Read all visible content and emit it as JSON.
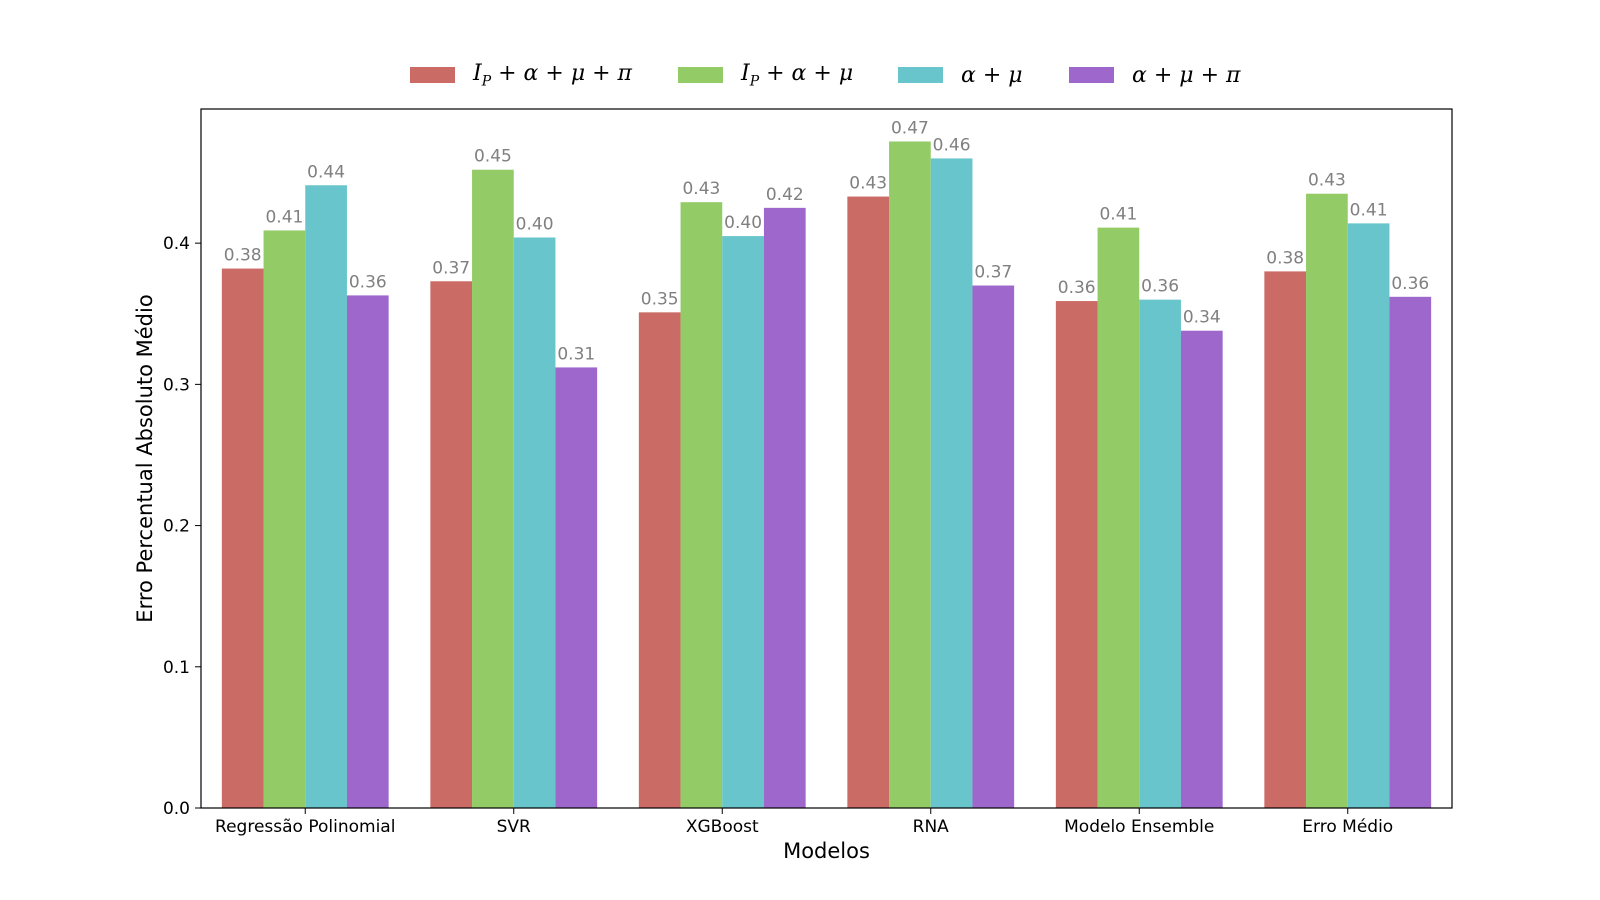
{
  "chart_data": {
    "type": "bar",
    "xlabel": "Modelos",
    "ylabel": "Erro Percentual Absoluto Médio",
    "ylim": [
      0,
      0.495
    ],
    "yticks": [
      "0.0",
      "0.1",
      "0.2",
      "0.3",
      "0.4"
    ],
    "grid": false,
    "legend_position": "top-center",
    "categories": [
      "Regressão Polinomial",
      "SVR",
      "XGBoost",
      "RNA",
      "Modelo Ensemble",
      "Erro Médio"
    ],
    "series": [
      {
        "name": "I_P + α + μ + π",
        "color": "#cb6b66",
        "values": [
          0.382,
          0.373,
          0.351,
          0.433,
          0.359,
          0.38
        ],
        "labels": [
          "0.38",
          "0.37",
          "0.35",
          "0.43",
          "0.36",
          "0.38"
        ]
      },
      {
        "name": "I_P + α + μ",
        "color": "#93cb67",
        "values": [
          0.409,
          0.452,
          0.429,
          0.472,
          0.411,
          0.435
        ],
        "labels": [
          "0.41",
          "0.45",
          "0.43",
          "0.47",
          "0.41",
          "0.43"
        ]
      },
      {
        "name": "α + μ",
        "color": "#67c5cb",
        "values": [
          0.441,
          0.404,
          0.405,
          0.46,
          0.36,
          0.414
        ],
        "labels": [
          "0.44",
          "0.40",
          "0.40",
          "0.46",
          "0.36",
          "0.41"
        ]
      },
      {
        "name": "α + μ + π",
        "color": "#9e67cb",
        "values": [
          0.363,
          0.312,
          0.425,
          0.37,
          0.338,
          0.362
        ],
        "labels": [
          "0.36",
          "0.31",
          "0.42",
          "0.37",
          "0.34",
          "0.36"
        ]
      }
    ]
  },
  "legend": [
    {
      "label": "I_P + α + μ + π",
      "color": "#cb6b66"
    },
    {
      "label": "I_P + α + μ",
      "color": "#93cb67"
    },
    {
      "label": "α + μ",
      "color": "#67c5cb"
    },
    {
      "label": "α + μ + π",
      "color": "#9e67cb"
    }
  ]
}
